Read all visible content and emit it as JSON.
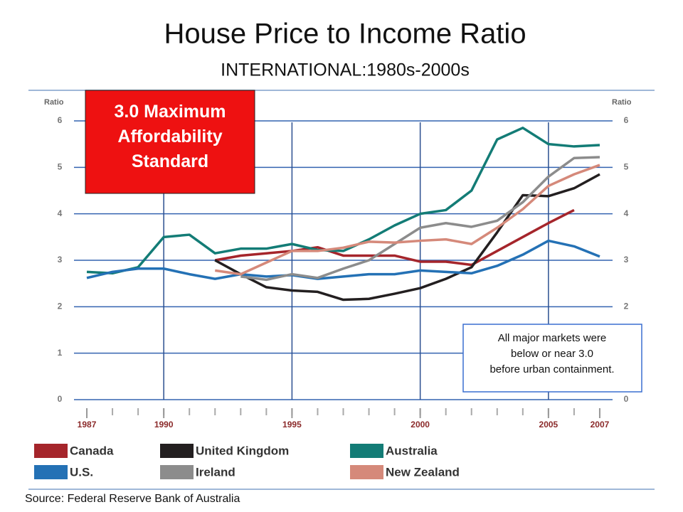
{
  "chart_data": {
    "type": "line",
    "title": "House Price to Income Ratio",
    "subtitle": "INTERNATIONAL:1980s-2000s",
    "y_label": "Ratio",
    "x": [
      1987,
      1988,
      1989,
      1990,
      1991,
      1992,
      1993,
      1994,
      1995,
      1996,
      1997,
      1998,
      1999,
      2000,
      2001,
      2002,
      2003,
      2004,
      2005,
      2006,
      2007
    ],
    "xlim": [
      1986.5,
      2007.5
    ],
    "xticks": [
      1987,
      1990,
      1995,
      2000,
      2005,
      2007
    ],
    "ylim": [
      0,
      6
    ],
    "yticks": [
      0,
      1,
      2,
      3,
      4,
      5,
      6
    ],
    "grid": true,
    "series": [
      {
        "name": "Canada",
        "color": "#a5252b",
        "values": [
          null,
          null,
          null,
          null,
          null,
          3.0,
          3.1,
          3.15,
          3.2,
          3.28,
          3.1,
          3.1,
          3.1,
          2.97,
          2.97,
          2.9,
          3.2,
          3.5,
          3.8,
          4.08,
          null
        ]
      },
      {
        "name": "United Kingdom",
        "color": "#231f20",
        "values": [
          null,
          null,
          null,
          null,
          null,
          3.0,
          2.7,
          2.42,
          2.35,
          2.32,
          2.15,
          2.17,
          2.28,
          2.4,
          2.6,
          2.85,
          3.6,
          4.4,
          4.38,
          4.55,
          4.85
        ]
      },
      {
        "name": "Australia",
        "color": "#137c76",
        "values": [
          2.75,
          2.72,
          2.85,
          3.5,
          3.55,
          3.15,
          3.25,
          3.25,
          3.35,
          3.22,
          3.2,
          3.45,
          3.75,
          4.0,
          4.08,
          4.5,
          5.6,
          5.85,
          5.5,
          5.45,
          5.48
        ]
      },
      {
        "name": "U.S.",
        "color": "#2471b5",
        "values": [
          2.62,
          2.75,
          2.82,
          2.82,
          2.7,
          2.6,
          2.7,
          2.65,
          2.68,
          2.6,
          2.65,
          2.7,
          2.7,
          2.78,
          2.75,
          2.72,
          2.88,
          3.12,
          3.42,
          3.3,
          3.08
        ]
      },
      {
        "name": "Ireland",
        "color": "#8c8c8c",
        "values": [
          null,
          null,
          null,
          null,
          null,
          null,
          2.65,
          2.58,
          2.7,
          2.62,
          2.82,
          3.0,
          3.35,
          3.7,
          3.8,
          3.72,
          3.85,
          4.25,
          4.8,
          5.2,
          5.22
        ]
      },
      {
        "name": "New Zealand",
        "color": "#d5897a",
        "values": [
          null,
          null,
          null,
          null,
          null,
          2.78,
          2.7,
          2.95,
          3.2,
          3.2,
          3.27,
          3.4,
          3.38,
          3.42,
          3.45,
          3.35,
          3.7,
          4.1,
          4.6,
          4.85,
          5.05
        ]
      }
    ],
    "annotations": [
      {
        "lines": [
          "3.0 Maximum",
          "Affordability",
          "Standard"
        ]
      },
      {
        "lines": [
          "All major markets were",
          "below or near 3.0",
          "before urban containment."
        ]
      }
    ],
    "source": "Source: Federal Reserve Bank of Australia"
  }
}
